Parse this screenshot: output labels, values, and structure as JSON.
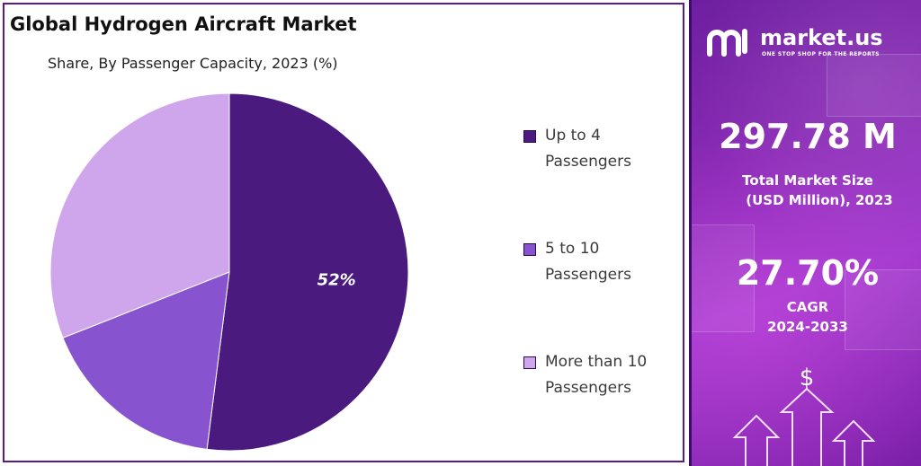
{
  "chart_data": {
    "type": "pie",
    "title": "Global Hydrogen Aircraft Market",
    "subtitle": "Share, By Passenger Capacity, 2023 (%)",
    "categories": [
      "Up to 4 Passengers",
      "5 to 10 Passengers",
      "More than 10 Passengers"
    ],
    "values": [
      52,
      17,
      31
    ],
    "unit": "%",
    "data_labels": [
      "52%",
      "",
      ""
    ],
    "colors": [
      "#4a1a7f",
      "#8853cf",
      "#cfa6ec"
    ],
    "legend_position": "right",
    "legend": [
      {
        "line1": "Up to 4",
        "line2": "Passengers"
      },
      {
        "line1": "5 to 10",
        "line2": "Passengers"
      },
      {
        "line1": "More than 10",
        "line2": "Passengers"
      }
    ]
  },
  "sidebar": {
    "brand_name": "market.us",
    "brand_tagline": "ONE STOP SHOP FOR THE REPORTS",
    "market_size_value": "297.78 M",
    "market_size_label_1": "Total Market Size",
    "market_size_label_2": "(USD Million), 2023",
    "cagr_value": "27.70%",
    "cagr_label_1": "CAGR",
    "cagr_label_2": "2024-2033",
    "dollar_symbol": "$",
    "accent_color": "#8b2bb7"
  }
}
